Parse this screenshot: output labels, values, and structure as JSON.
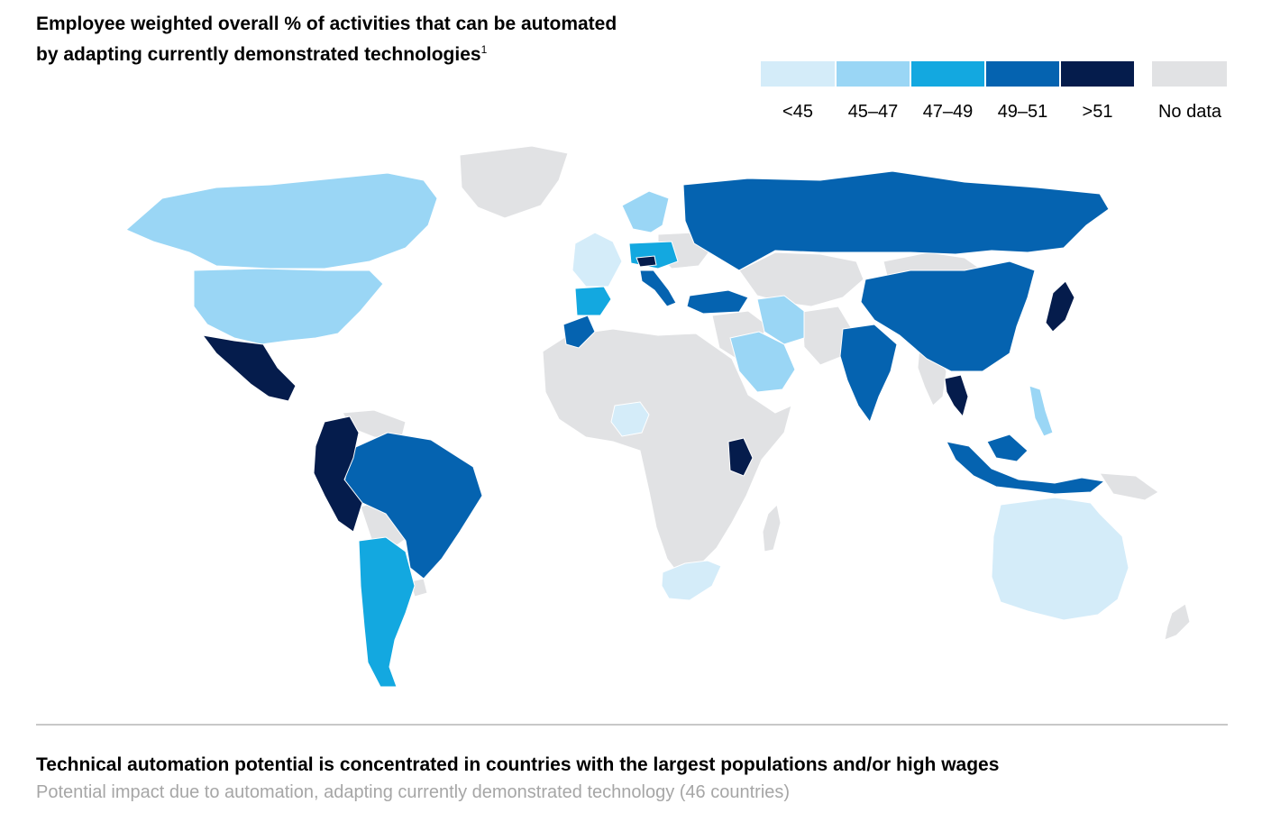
{
  "title": {
    "line1": "Employee weighted overall % of activities that can be automated",
    "line2": "by adapting currently demonstrated technologies",
    "footnote_mark": "1"
  },
  "legend": [
    {
      "label": "<45",
      "color": "#d4ecf9"
    },
    {
      "label": "45–47",
      "color": "#9ad6f5"
    },
    {
      "label": "47–49",
      "color": "#13a8e0"
    },
    {
      "label": "49–51",
      "color": "#0563b0"
    },
    {
      "label": ">51",
      "color": "#051c4c"
    },
    {
      "label": "No data",
      "color": "#e1e2e4"
    }
  ],
  "footer": {
    "title": "Technical automation potential is concentrated in countries with the largest populations and/or high wages",
    "subtitle": "Potential impact due to automation, adapting currently demonstrated technology (46 countries)"
  }
}
